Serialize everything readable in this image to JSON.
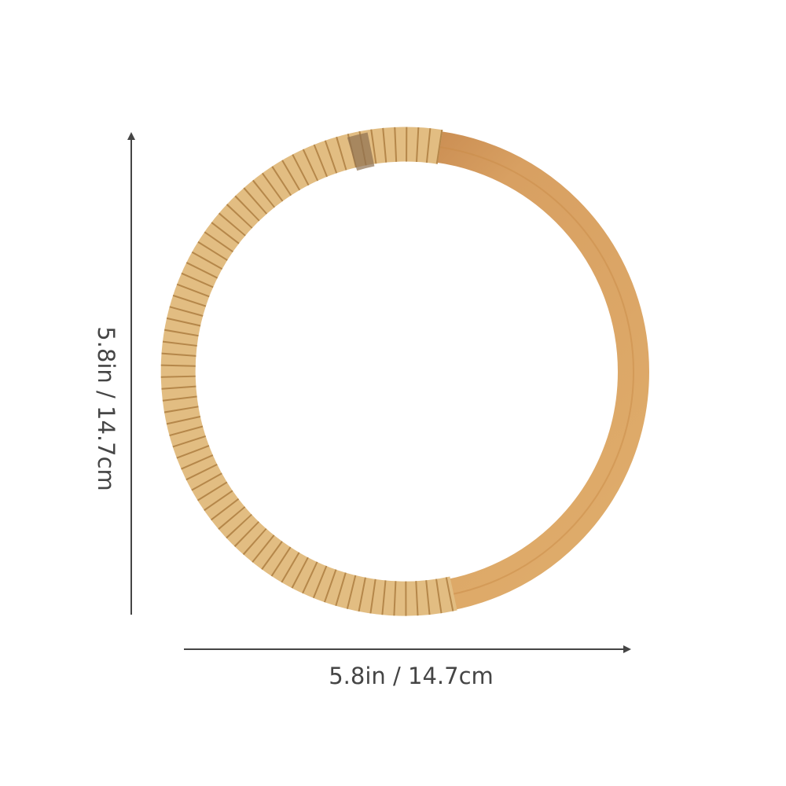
{
  "product": {
    "icon": "rattan-bag-handle-ring",
    "colors": {
      "bamboo": "#d49a55",
      "wrap": "#e2bd82",
      "rib": "#b5874a",
      "arrow": "#454545"
    }
  },
  "dimensions": {
    "width_label": "5.8in / 14.7cm",
    "height_label": "5.8in / 14.7cm"
  }
}
